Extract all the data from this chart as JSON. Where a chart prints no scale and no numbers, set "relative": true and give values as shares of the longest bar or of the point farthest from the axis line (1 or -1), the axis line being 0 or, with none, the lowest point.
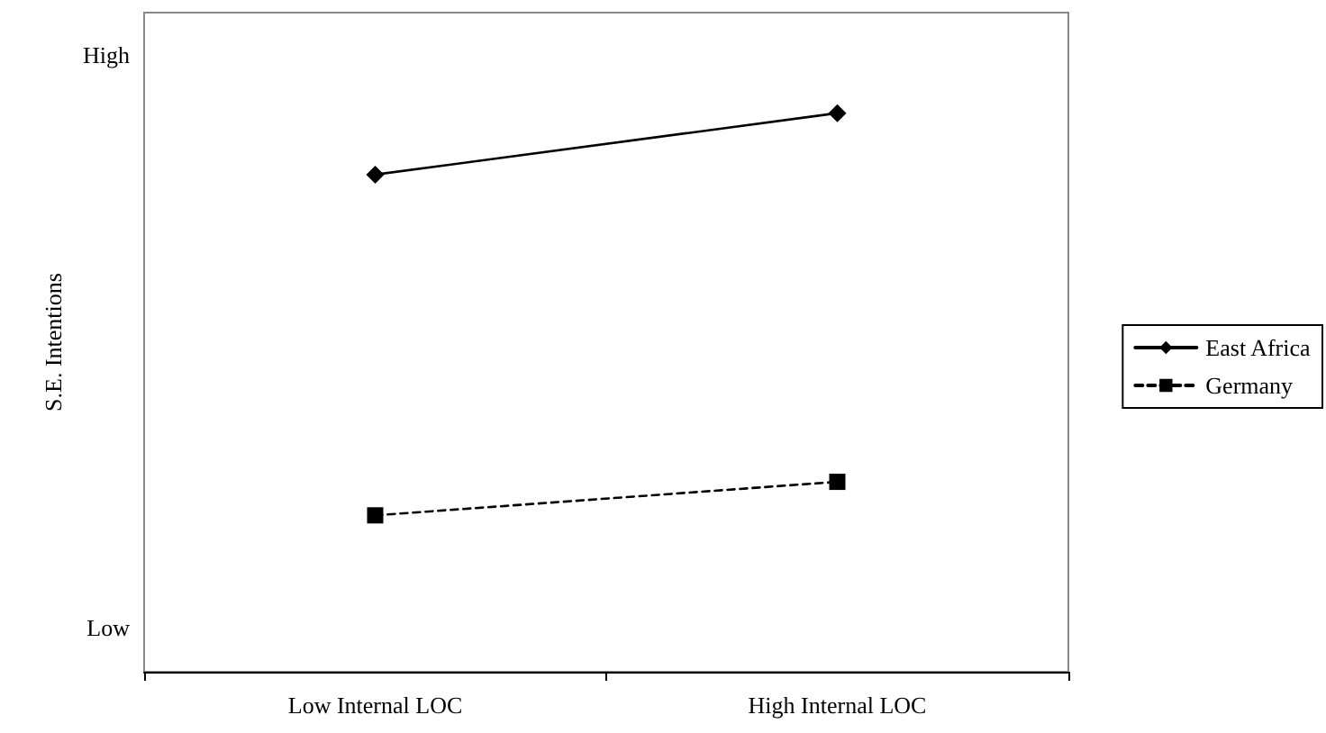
{
  "chart_data": {
    "type": "line",
    "ylabel": "S.E. Intentions",
    "categories": [
      "Low Internal LOC",
      "High Internal LOC"
    ],
    "series": [
      {
        "name": "East Africa",
        "color": "#000000",
        "values": [
          0.89,
          1
        ],
        "marker": "diamond",
        "line_style": "solid"
      },
      {
        "name": "Germany",
        "color": "#000000",
        "values": [
          0.28,
          0.34
        ],
        "marker": "square",
        "line_style": "dashed"
      }
    ],
    "relative": true,
    "annotations": [
      "High",
      "Low"
    ],
    "grid": false,
    "legend": "right"
  }
}
